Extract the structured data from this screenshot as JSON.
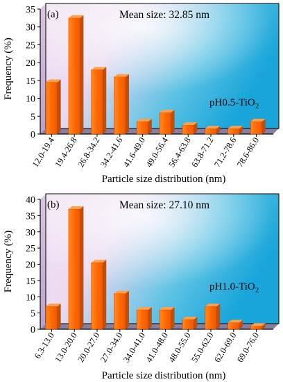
{
  "chart_data": [
    {
      "type": "bar",
      "panel_label": "(a)",
      "annotation": "Mean size: 32.85 nm",
      "sample_label": {
        "main": "pH0.5-TiO",
        "sub": "2"
      },
      "xlabel": "Particle size distribution (nm)",
      "ylabel": "Frequency (%)",
      "ylim": [
        0,
        35
      ],
      "yticks": [
        "0",
        "5",
        "10",
        "15",
        "20",
        "25",
        "30",
        "35"
      ],
      "categories": [
        "12.0-19.4",
        "19.4-26.8",
        "26.8-34.2",
        "34.2-41.6",
        "41.6-49.0",
        "49.0-56.4",
        "56.4-63.8",
        "63.8-71.2",
        "71.2-78.6",
        "78.6-86.0"
      ],
      "values": [
        14.5,
        32.5,
        18,
        16,
        3.5,
        6,
        2.5,
        1.5,
        1.5,
        3.5
      ],
      "bar_color": "#ff6a00",
      "grid": false
    },
    {
      "type": "bar",
      "panel_label": "(b)",
      "annotation": "Mean size: 27.10 nm",
      "sample_label": {
        "main": "pH1.0-TiO",
        "sub": "2"
      },
      "xlabel": "Particle size distribution (nm)",
      "ylabel": "Frequency (%)",
      "ylim": [
        0,
        40
      ],
      "yticks": [
        "0",
        "5",
        "10",
        "15",
        "20",
        "25",
        "30",
        "35",
        "40"
      ],
      "categories": [
        "6.3-13.0",
        "13.0-20.0",
        "20.0-27.0",
        "27.0-34.0",
        "34.0-41.0",
        "41.0-48.0",
        "48.0-55.0",
        "55.0-62.0",
        "62.0-69.0",
        "69.0-76.0"
      ],
      "values": [
        7,
        37,
        20.5,
        11,
        6,
        6,
        3,
        7,
        2,
        1
      ],
      "bar_color": "#ff6a00",
      "grid": false
    }
  ]
}
